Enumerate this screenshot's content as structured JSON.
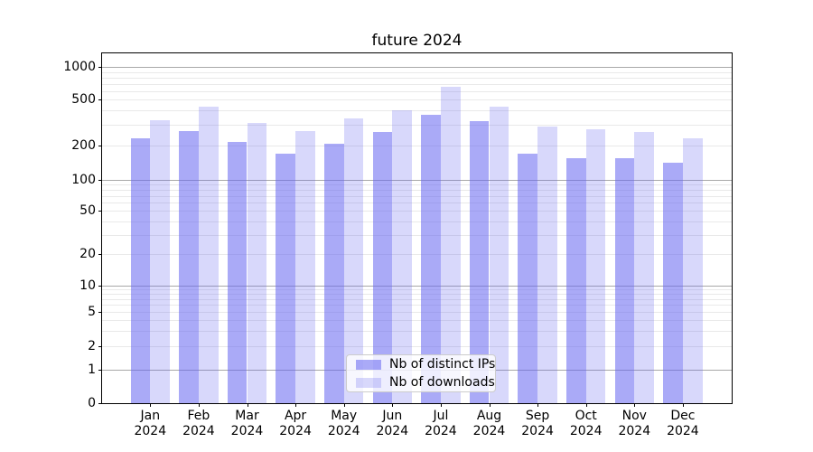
{
  "chart": {
    "title": "future 2024",
    "legend": {
      "items": [
        {
          "label": "Nb of distinct IPs",
          "color": "rgba(100,100,240,0.55)"
        },
        {
          "label": "Nb of downloads",
          "color": "rgba(100,100,240,0.25)"
        }
      ]
    }
  },
  "chart_data": {
    "type": "bar",
    "title": "future 2024",
    "categories": [
      "Jan 2024",
      "Feb 2024",
      "Mar 2024",
      "Apr 2024",
      "May 2024",
      "Jun 2024",
      "Jul 2024",
      "Aug 2024",
      "Sep 2024",
      "Oct 2024",
      "Nov 2024",
      "Dec 2024"
    ],
    "series": [
      {
        "name": "Nb of distinct IPs",
        "color": "rgba(100,100,240,0.55)",
        "values": [
          230,
          265,
          215,
          170,
          205,
          260,
          365,
          325,
          170,
          154,
          153,
          140
        ]
      },
      {
        "name": "Nb of downloads",
        "color": "rgba(100,100,240,0.25)",
        "values": [
          330,
          435,
          315,
          265,
          345,
          400,
          655,
          430,
          290,
          275,
          260,
          230
        ]
      }
    ],
    "xlabel": "",
    "ylabel": "",
    "yscale": "asinh-log",
    "ylim": [
      0,
      1150
    ],
    "y_ticks_labeled": [
      1000,
      500,
      200,
      100,
      50,
      20,
      10,
      5,
      2,
      1,
      0
    ],
    "y_major_grid_values": [
      1,
      10,
      100,
      1000
    ],
    "y_minor_grid_values": [
      2,
      3,
      4,
      5,
      6,
      7,
      8,
      9,
      20,
      30,
      40,
      50,
      60,
      70,
      80,
      90,
      200,
      300,
      400,
      500,
      600,
      700,
      800,
      900
    ],
    "grid": true,
    "legend_position": "lower center",
    "style": {
      "major_grid_color": "#a8a8a8",
      "minor_grid_color": "#e9e9e9",
      "spine_color": "#000000",
      "text_color": "#000000"
    }
  }
}
